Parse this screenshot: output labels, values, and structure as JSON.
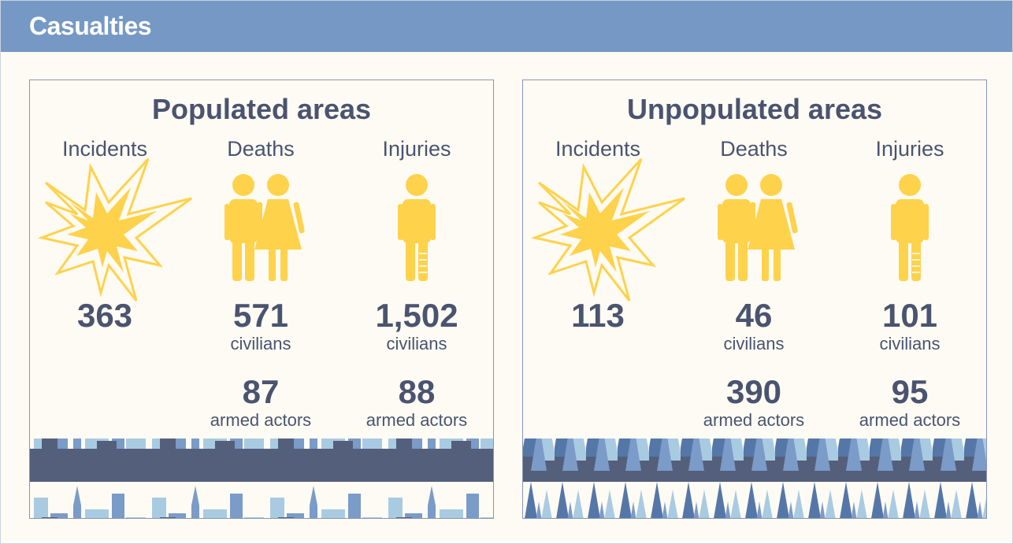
{
  "header": {
    "title": "Casualties"
  },
  "panels": [
    {
      "title": "Populated areas",
      "columns": [
        {
          "heading": "Incidents",
          "stats": [
            {
              "value": "363"
            }
          ]
        },
        {
          "heading": "Deaths",
          "stats": [
            {
              "value": "571",
              "label": "civilians"
            },
            {
              "value": "87",
              "label": "armed actors"
            }
          ]
        },
        {
          "heading": "Injuries",
          "stats": [
            {
              "value": "1,502",
              "label": "civilians"
            },
            {
              "value": "88",
              "label": "armed actors"
            }
          ]
        }
      ]
    },
    {
      "title": "Unpopulated areas",
      "columns": [
        {
          "heading": "Incidents",
          "stats": [
            {
              "value": "113"
            }
          ]
        },
        {
          "heading": "Deaths",
          "stats": [
            {
              "value": "46",
              "label": "civilians"
            },
            {
              "value": "390",
              "label": "armed actors"
            }
          ]
        },
        {
          "heading": "Injuries",
          "stats": [
            {
              "value": "101",
              "label": "civilians"
            },
            {
              "value": "95",
              "label": "armed actors"
            }
          ]
        }
      ]
    }
  ]
}
